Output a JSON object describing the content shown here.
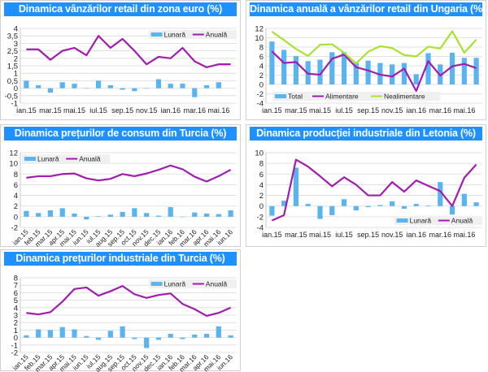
{
  "colors": {
    "bar": "#5ab4f0",
    "line": "#a21caf",
    "line2": "#a6e22e",
    "title_bg": "#1e90ff",
    "grid": "#d9d9d9"
  },
  "chart_data": [
    {
      "type": "bar+line",
      "title": "Dinamica vânzărilor retail din zona euro (%)",
      "categories": [
        "ian.15",
        "feb.15",
        "mar.15",
        "apr.15",
        "mai.15",
        "iun.15",
        "iul.15",
        "aug.15",
        "sep.15",
        "oct.15",
        "nov.15",
        "dec.15",
        "ian.16",
        "feb.16",
        "mar.16",
        "apr.16",
        "mai.16",
        "iun.16"
      ],
      "x_tick_labels": [
        "ian.15",
        "mar.15",
        "mai.15",
        "iul.15",
        "sep.15",
        "nov.15",
        "ian.16",
        "mar.16",
        "mai.16"
      ],
      "ylim": [
        -1,
        4
      ],
      "yticks": [
        "-1",
        "-0,5",
        "0",
        "0,5",
        "1",
        "1,5",
        "2",
        "2,5",
        "3",
        "3,5",
        "4"
      ],
      "grid": true,
      "legend": "top-right",
      "series": [
        {
          "name": "Lunară",
          "kind": "bar",
          "values": [
            0.5,
            0.2,
            -0.3,
            0.4,
            0.3,
            0,
            0.5,
            0.2,
            -0.1,
            -0.2,
            0,
            0.6,
            0.3,
            0.3,
            -0.6,
            0.2,
            0.4,
            null
          ]
        },
        {
          "name": "Anuală",
          "kind": "line",
          "values": [
            2.6,
            2.6,
            1.9,
            2.5,
            2.7,
            2.2,
            3.5,
            2.7,
            3.3,
            2.5,
            1.6,
            2.1,
            2.0,
            2.7,
            1.8,
            1.4,
            1.6,
            1.6
          ]
        }
      ]
    },
    {
      "type": "bar+line",
      "title": "Dinamica anuală a vânzărilor retail din Ungaria (%)",
      "categories": [
        "ian.15",
        "feb.15",
        "mar.15",
        "apr.15",
        "mai.15",
        "iun.15",
        "iul.15",
        "aug.15",
        "sep.15",
        "oct.15",
        "nov.15",
        "dec.15",
        "ian.16",
        "feb.16",
        "mar.16",
        "apr.16",
        "mai.16",
        "iun.16"
      ],
      "x_tick_labels": [
        "ian.15",
        "mar.15",
        "mai.15",
        "iul.15",
        "sep.15",
        "nov.15",
        "ian.16",
        "mar.16",
        "mai.16"
      ],
      "ylim": [
        -4,
        12
      ],
      "yticks": [
        "-4",
        "-2",
        "0",
        "2",
        "4",
        "6",
        "8",
        "10",
        "12"
      ],
      "grid": true,
      "legend": "bottom-left",
      "series": [
        {
          "name": "Total",
          "kind": "bar",
          "values": [
            9.2,
            7.4,
            6.1,
            5.0,
            5.3,
            6.9,
            6.9,
            4.6,
            5.1,
            4.6,
            4.3,
            4.6,
            2.2,
            6.7,
            4.3,
            6.8,
            5.7,
            5.7
          ]
        },
        {
          "name": "Alimentare",
          "kind": "line",
          "values": [
            7.1,
            4.6,
            4.8,
            2.3,
            2.1,
            5.5,
            6.4,
            3.7,
            3.0,
            2.1,
            1.7,
            3.4,
            -1.4,
            5.0,
            1.9,
            3.9,
            4.4,
            3.5
          ]
        },
        {
          "name": "Nealimentare",
          "kind": "line2",
          "values": [
            11.3,
            9.5,
            7.6,
            6.1,
            8.5,
            8.6,
            6.8,
            4.5,
            7.0,
            8.2,
            7.8,
            6.3,
            6.0,
            8.1,
            7.7,
            11.4,
            6.8,
            9.6
          ]
        }
      ]
    },
    {
      "type": "bar+line",
      "title": "Dinamica prețurilor de consum din Turcia (%)",
      "categories": [
        "ian.15",
        "feb.15",
        "mar.15",
        "apr.15",
        "mai.15",
        "iun.15",
        "iul.15",
        "aug.15",
        "sep.15",
        "oct.15",
        "nov.15",
        "dec.15",
        "ian.16",
        "feb.16",
        "mar.16",
        "apr.16",
        "mai.16",
        "iun.16"
      ],
      "x_tick_labels": [
        "ian.15",
        "feb.15",
        "mar.15",
        "apr.15",
        "mai.15",
        "iun.15",
        "iul.15",
        "aug.15",
        "sep.15",
        "oct.15",
        "nov.15",
        "dec.15",
        "ian.16",
        "feb.16",
        "mar.16",
        "apr.16",
        "mai.16",
        "iun.16"
      ],
      "ylim": [
        -2,
        12
      ],
      "yticks": [
        "-2",
        "0",
        "2",
        "4",
        "6",
        "8",
        "10",
        "12"
      ],
      "grid": true,
      "legend": "top-left",
      "rotated_labels": true,
      "series": [
        {
          "name": "Lunară",
          "kind": "bar",
          "values": [
            1.1,
            0.7,
            1.2,
            1.6,
            0.6,
            -0.5,
            0.1,
            0.4,
            0.9,
            1.6,
            0.7,
            0.2,
            1.8,
            0.0,
            0.8,
            0.6,
            0.5,
            1.2
          ]
        },
        {
          "name": "Anuală",
          "kind": "line",
          "values": [
            7.3,
            7.6,
            7.6,
            8.0,
            8.1,
            7.2,
            6.8,
            7.1,
            8.0,
            7.6,
            8.1,
            8.8,
            9.6,
            8.9,
            7.5,
            6.6,
            7.6,
            8.8
          ]
        }
      ]
    },
    {
      "type": "bar+line",
      "title": "Dinamica producției industriale din Letonia (%)",
      "categories": [
        "ian.15",
        "feb.15",
        "mar.15",
        "apr.15",
        "mai.15",
        "iun.15",
        "iul.15",
        "aug.15",
        "sep.15",
        "oct.15",
        "nov.15",
        "dec.15",
        "ian.16",
        "feb.16",
        "mar.16",
        "apr.16",
        "mai.16",
        "iun.16"
      ],
      "x_tick_labels": [
        "ian.15",
        "mar.15",
        "mai.15",
        "iul.15",
        "sep.15",
        "nov.15",
        "ian.16",
        "mar.16",
        "mai.16"
      ],
      "ylim": [
        -4,
        10
      ],
      "yticks": [
        "-4",
        "-2",
        "0",
        "2",
        "4",
        "6",
        "8",
        "10"
      ],
      "grid": true,
      "legend": "bottom-right",
      "series": [
        {
          "name": "Lunară",
          "kind": "bar",
          "values": [
            -1.8,
            1.0,
            7.2,
            0.4,
            -2.4,
            -1.7,
            1.3,
            -0.8,
            -0.2,
            0.2,
            0.9,
            -0.5,
            0.4,
            0.1,
            4.5,
            -1.6,
            2.3,
            0.7
          ]
        },
        {
          "name": "Anuală",
          "kind": "line",
          "values": [
            -2.7,
            -1.7,
            8.7,
            7.4,
            5.6,
            3.7,
            5.4,
            4.0,
            2.0,
            2.0,
            4.5,
            2.7,
            4.8,
            3.8,
            2.8,
            0.0,
            5.3,
            7.8
          ]
        }
      ]
    },
    {
      "type": "bar+line",
      "title": "Dinamica prețurilor industriale din Turcia (%)",
      "categories": [
        "ian.15",
        "feb.15",
        "mar.15",
        "apr.15",
        "mai.15",
        "iun.15",
        "iul.15",
        "aug.15",
        "sep.15",
        "oct.15",
        "nov.15",
        "dec.15",
        "ian.16",
        "feb.16",
        "mar.16",
        "apr.16",
        "mai.16",
        "iun.16"
      ],
      "x_tick_labels": [
        "ian.15",
        "feb.15",
        "mar.15",
        "apr.15",
        "mai.15",
        "iun.15",
        "iul.15",
        "aug.15",
        "sep.15",
        "oct.15",
        "nov.15",
        "dec.15",
        "ian.16",
        "feb.16",
        "mar.16",
        "apr.16",
        "mai.16",
        "iun.16"
      ],
      "ylim": [
        -2,
        8
      ],
      "yticks": [
        "-2",
        "-1",
        "0",
        "1",
        "2",
        "3",
        "4",
        "5",
        "6",
        "7",
        "8"
      ],
      "grid": true,
      "legend": "top-right",
      "rotated_labels": true,
      "series": [
        {
          "name": "Lunară",
          "kind": "bar",
          "values": [
            0.3,
            1.1,
            1.0,
            1.4,
            1.1,
            0.2,
            -0.3,
            0.9,
            1.5,
            -0.2,
            -1.4,
            -0.3,
            0.5,
            -0.2,
            0.4,
            0.5,
            1.5,
            0.3
          ]
        },
        {
          "name": "Anuală",
          "kind": "line",
          "values": [
            3.3,
            3.1,
            3.4,
            4.8,
            6.5,
            6.7,
            5.6,
            6.2,
            6.9,
            5.8,
            5.3,
            5.7,
            5.9,
            4.5,
            3.8,
            2.9,
            3.3,
            4.0
          ]
        }
      ]
    }
  ]
}
